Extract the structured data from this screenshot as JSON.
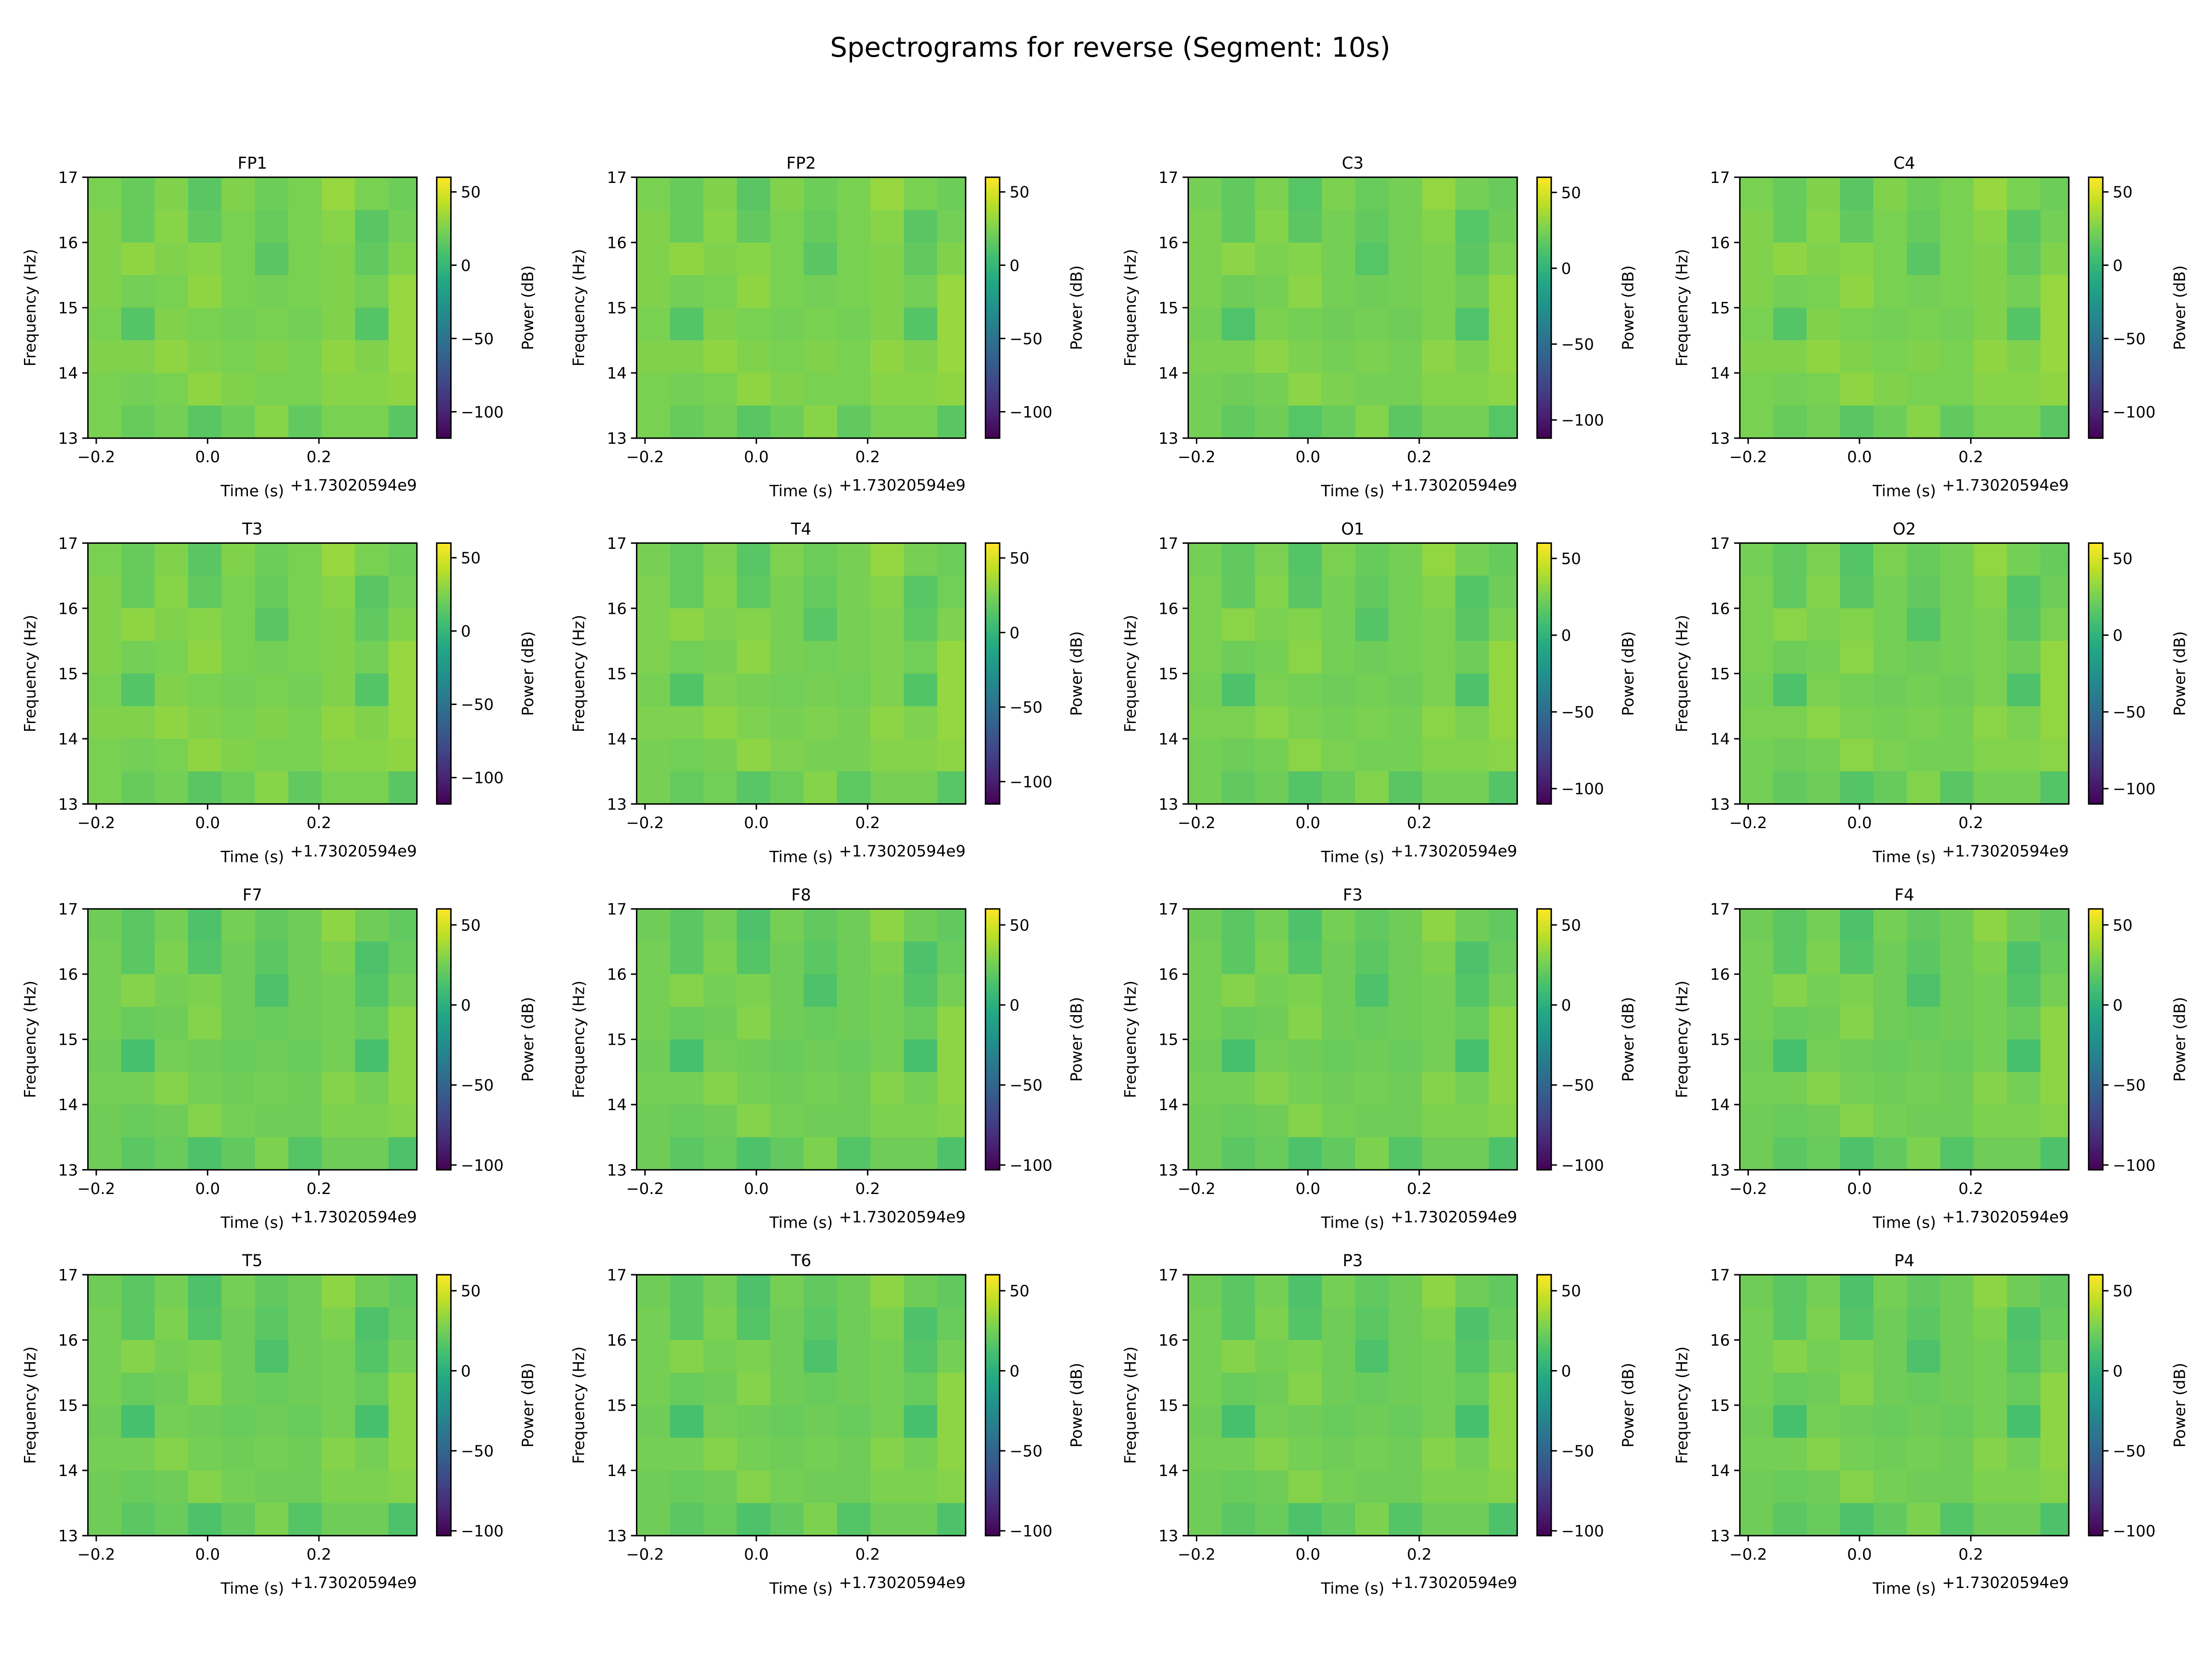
{
  "suptitle": "Spectrograms for reverse (Segment: 10s)",
  "colors": {
    "colormap": "viridis"
  },
  "common": {
    "xlabel": "Time (s)",
    "x_offset_text": "+1.73020594e9",
    "ylabel": "Frequency (Hz)",
    "cbar_label": "Power (dB)",
    "xticks": [
      -0.2,
      0.0,
      0.2
    ],
    "xtick_labels": [
      "−0.2",
      "0.0",
      "0.2"
    ],
    "yticks": [
      13,
      14,
      15,
      16,
      17
    ],
    "ytick_labels": [
      "13",
      "14",
      "15",
      "16",
      "17"
    ],
    "cbar_ticks": [
      50,
      0,
      -50,
      -100
    ],
    "cbar_tick_labels": [
      "50",
      "0",
      "−50",
      "−100"
    ],
    "xlim": [
      -0.215,
      0.376
    ],
    "ylim": [
      13,
      17
    ],
    "time_bins": [
      -0.215,
      -0.155,
      -0.095,
      -0.035,
      0.025,
      0.085,
      0.145,
      0.205,
      0.265,
      0.325,
      0.376
    ],
    "freq_bins": [
      17,
      16.5,
      16,
      15.5,
      15,
      14.5,
      14,
      13.5,
      13
    ]
  },
  "chart_data": [
    {
      "type": "heatmap",
      "title": "FP1",
      "clim": [
        -118,
        60
      ]
    },
    {
      "type": "heatmap",
      "title": "FP2",
      "clim": [
        -118,
        60
      ]
    },
    {
      "type": "heatmap",
      "title": "C3",
      "clim": [
        -112,
        60
      ]
    },
    {
      "type": "heatmap",
      "title": "C4",
      "clim": [
        -118,
        60
      ]
    },
    {
      "type": "heatmap",
      "title": "T3",
      "clim": [
        -118,
        60
      ]
    },
    {
      "type": "heatmap",
      "title": "T4",
      "clim": [
        -115,
        60
      ]
    },
    {
      "type": "heatmap",
      "title": "O1",
      "clim": [
        -110,
        60
      ]
    },
    {
      "type": "heatmap",
      "title": "O2",
      "clim": [
        -110,
        60
      ]
    },
    {
      "type": "heatmap",
      "title": "F7",
      "clim": [
        -103,
        60
      ]
    },
    {
      "type": "heatmap",
      "title": "F8",
      "clim": [
        -103,
        60
      ]
    },
    {
      "type": "heatmap",
      "title": "F3",
      "clim": [
        -103,
        60
      ]
    },
    {
      "type": "heatmap",
      "title": "F4",
      "clim": [
        -103,
        60
      ]
    },
    {
      "type": "heatmap",
      "title": "T5",
      "clim": [
        -103,
        60
      ]
    },
    {
      "type": "heatmap",
      "title": "T6",
      "clim": [
        -103,
        60
      ]
    },
    {
      "type": "heatmap",
      "title": "P3",
      "clim": [
        -103,
        60
      ]
    },
    {
      "type": "heatmap",
      "title": "P4",
      "clim": [
        -103,
        60
      ]
    }
  ],
  "z_dB_rows_high_to_low_freq": [
    [
      24,
      18,
      26,
      14,
      26,
      20,
      24,
      32,
      24,
      20
    ],
    [
      26,
      18,
      28,
      16,
      24,
      18,
      24,
      28,
      14,
      22
    ],
    [
      26,
      30,
      26,
      28,
      24,
      14,
      24,
      26,
      16,
      26
    ],
    [
      26,
      22,
      24,
      30,
      24,
      22,
      24,
      26,
      22,
      32
    ],
    [
      24,
      12,
      26,
      24,
      22,
      24,
      22,
      26,
      12,
      32
    ],
    [
      26,
      26,
      30,
      26,
      24,
      26,
      24,
      30,
      26,
      32
    ],
    [
      24,
      22,
      24,
      30,
      26,
      24,
      24,
      28,
      28,
      30
    ],
    [
      24,
      18,
      22,
      14,
      20,
      28,
      16,
      24,
      24,
      14
    ]
  ]
}
